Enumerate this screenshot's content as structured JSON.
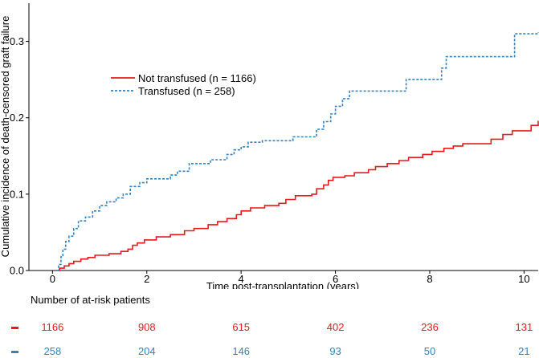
{
  "chart_data": {
    "type": "step",
    "xlabel": "Time post-transplantation (years)",
    "ylabel": "Cumulative incidence of death-censored graft failure",
    "xlim": [
      -0.5,
      10.3
    ],
    "ylim": [
      0,
      0.35
    ],
    "xticks": [
      0,
      2,
      4,
      6,
      8,
      10
    ],
    "yticks": [
      0.0,
      0.1,
      0.2,
      0.3
    ],
    "ytick_labels": [
      "0.0",
      "0.1",
      "0.2",
      "0.3"
    ],
    "legend_position": "upper-left",
    "series": [
      {
        "name": "Not transfused (n = 1166)",
        "color": "#e41a1c",
        "style": "solid",
        "points": [
          [
            0.1,
            0.0
          ],
          [
            0.15,
            0.003
          ],
          [
            0.25,
            0.006
          ],
          [
            0.35,
            0.009
          ],
          [
            0.45,
            0.012
          ],
          [
            0.6,
            0.015
          ],
          [
            0.75,
            0.017
          ],
          [
            0.9,
            0.02
          ],
          [
            1.2,
            0.022
          ],
          [
            1.45,
            0.025
          ],
          [
            1.6,
            0.028
          ],
          [
            1.7,
            0.033
          ],
          [
            1.8,
            0.036
          ],
          [
            1.95,
            0.04
          ],
          [
            2.2,
            0.044
          ],
          [
            2.5,
            0.047
          ],
          [
            2.8,
            0.052
          ],
          [
            3.0,
            0.055
          ],
          [
            3.3,
            0.06
          ],
          [
            3.5,
            0.064
          ],
          [
            3.7,
            0.068
          ],
          [
            3.9,
            0.073
          ],
          [
            4.0,
            0.078
          ],
          [
            4.2,
            0.082
          ],
          [
            4.5,
            0.085
          ],
          [
            4.8,
            0.088
          ],
          [
            4.95,
            0.093
          ],
          [
            5.15,
            0.098
          ],
          [
            5.5,
            0.1
          ],
          [
            5.6,
            0.107
          ],
          [
            5.75,
            0.112
          ],
          [
            5.85,
            0.118
          ],
          [
            5.95,
            0.122
          ],
          [
            6.2,
            0.124
          ],
          [
            6.4,
            0.128
          ],
          [
            6.7,
            0.132
          ],
          [
            6.85,
            0.136
          ],
          [
            7.1,
            0.14
          ],
          [
            7.35,
            0.144
          ],
          [
            7.55,
            0.148
          ],
          [
            7.85,
            0.152
          ],
          [
            8.05,
            0.156
          ],
          [
            8.3,
            0.16
          ],
          [
            8.5,
            0.163
          ],
          [
            8.7,
            0.166
          ],
          [
            9.3,
            0.172
          ],
          [
            9.55,
            0.178
          ],
          [
            9.75,
            0.183
          ],
          [
            10.15,
            0.19
          ],
          [
            10.3,
            0.196
          ]
        ]
      },
      {
        "name": "Transfused (n = 258)",
        "color": "#3182bd",
        "style": "dotted",
        "points": [
          [
            0.1,
            0.0
          ],
          [
            0.13,
            0.008
          ],
          [
            0.18,
            0.018
          ],
          [
            0.22,
            0.028
          ],
          [
            0.28,
            0.038
          ],
          [
            0.35,
            0.045
          ],
          [
            0.45,
            0.055
          ],
          [
            0.55,
            0.065
          ],
          [
            0.7,
            0.07
          ],
          [
            0.85,
            0.078
          ],
          [
            1.0,
            0.085
          ],
          [
            1.15,
            0.09
          ],
          [
            1.35,
            0.095
          ],
          [
            1.5,
            0.1
          ],
          [
            1.65,
            0.11
          ],
          [
            1.85,
            0.115
          ],
          [
            2.0,
            0.12
          ],
          [
            2.5,
            0.125
          ],
          [
            2.65,
            0.13
          ],
          [
            2.9,
            0.14
          ],
          [
            3.35,
            0.145
          ],
          [
            3.7,
            0.152
          ],
          [
            3.85,
            0.158
          ],
          [
            4.0,
            0.162
          ],
          [
            4.15,
            0.168
          ],
          [
            4.45,
            0.17
          ],
          [
            5.1,
            0.175
          ],
          [
            5.6,
            0.185
          ],
          [
            5.75,
            0.195
          ],
          [
            5.9,
            0.205
          ],
          [
            6.0,
            0.215
          ],
          [
            6.15,
            0.225
          ],
          [
            6.3,
            0.235
          ],
          [
            7.5,
            0.25
          ],
          [
            8.25,
            0.265
          ],
          [
            8.35,
            0.28
          ],
          [
            9.8,
            0.31
          ],
          [
            10.3,
            0.312
          ]
        ]
      }
    ]
  },
  "risk_table": {
    "title": "Number of at-risk patients",
    "times": [
      0,
      2,
      4,
      6,
      8,
      10
    ],
    "rows": [
      {
        "color": "#e41a1c",
        "values": [
          "1166",
          "908",
          "615",
          "402",
          "236",
          "131"
        ]
      },
      {
        "color": "#3182bd",
        "values": [
          "258",
          "204",
          "146",
          "93",
          "50",
          "21"
        ]
      }
    ]
  }
}
